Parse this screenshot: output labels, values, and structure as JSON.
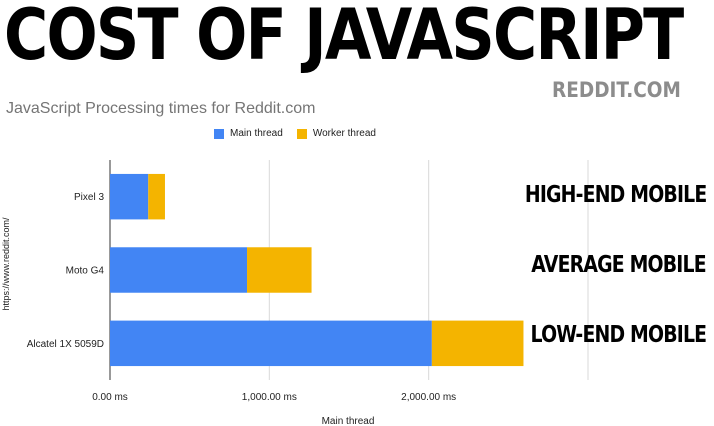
{
  "header": {
    "banner": "COST OF JAVASCRIPT",
    "source": "REDDIT.COM"
  },
  "annotations": [
    {
      "label": "HIGH-END MOBILE"
    },
    {
      "label": "AVERAGE MOBILE"
    },
    {
      "label": "LOW-END MOBILE"
    }
  ],
  "colors": {
    "main_thread": "#4285F4",
    "worker_thread": "#F4B400",
    "grid": "#d9d9d9"
  },
  "chart_data": {
    "type": "bar",
    "orientation": "horizontal",
    "stacked": true,
    "title": "JavaScript Processing times for Reddit.com",
    "xlabel": "Main thread",
    "ylabel": "https://www.reddit.com/",
    "categories": [
      "Pixel 3",
      "Moto G4",
      "Alcatel 1X 5059D"
    ],
    "series": [
      {
        "name": "Main thread",
        "values": [
          240,
          860,
          2020
        ]
      },
      {
        "name": "Worker thread",
        "values": [
          105,
          405,
          575
        ]
      }
    ],
    "xlim": [
      0,
      3000
    ],
    "xticks": [
      0,
      1000,
      2000,
      3000
    ],
    "xtick_labels": [
      "0.00 ms",
      "1,000.00 ms",
      "2,000.00 ms",
      ""
    ],
    "grid": true,
    "legend": "top"
  }
}
